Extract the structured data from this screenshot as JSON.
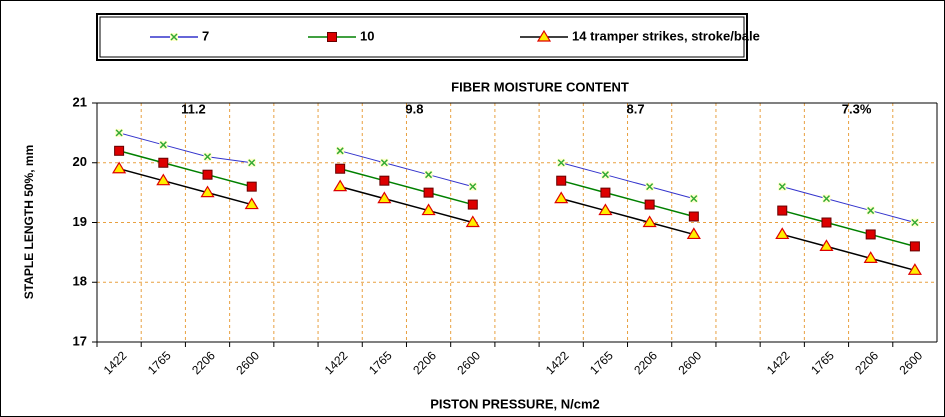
{
  "chart_data": {
    "type": "line",
    "title": "FIBER MOISTURE CONTENT",
    "annotations": [
      "11.2",
      "9.8",
      "8.7",
      "7.3%"
    ],
    "x_label": "PISTON PRESSURE, N/cm2",
    "y_label": "STAPLE LENGTH 50%, mm",
    "categories": [
      "1422",
      "1765",
      "2206",
      "2600",
      null,
      "1422",
      "1765",
      "2206",
      "2600",
      null,
      "1422",
      "1765",
      "2206",
      "2600",
      null,
      "1422",
      "1765",
      "2206",
      "2600"
    ],
    "series": [
      {
        "name": "7",
        "color": "#3333cc",
        "marker": "x",
        "marker_color": "#33aa33",
        "values": [
          20.5,
          20.3,
          20.1,
          20.0,
          null,
          20.2,
          20.0,
          19.8,
          19.6,
          null,
          20.0,
          19.8,
          19.6,
          19.4,
          null,
          19.6,
          19.4,
          19.2,
          19.0
        ]
      },
      {
        "name": "10",
        "color": "#008000",
        "marker": "square",
        "marker_color": "#dd0000",
        "values": [
          20.2,
          20.0,
          19.8,
          19.6,
          null,
          19.9,
          19.7,
          19.5,
          19.3,
          null,
          19.7,
          19.5,
          19.3,
          19.1,
          null,
          19.2,
          19.0,
          18.8,
          18.6
        ]
      },
      {
        "name": "14 tramper strikes, stroke/bale",
        "color": "#000000",
        "marker": "triangle",
        "marker_color": "#ffee00",
        "values": [
          19.9,
          19.7,
          19.5,
          19.3,
          null,
          19.6,
          19.4,
          19.2,
          19.0,
          null,
          19.4,
          19.2,
          19.0,
          18.8,
          null,
          18.8,
          18.6,
          18.4,
          18.2
        ]
      }
    ],
    "ylim": [
      17,
      21
    ],
    "yticks": [
      17,
      18,
      19,
      20,
      21
    ],
    "grid": true,
    "grid_color": "#e8a040"
  }
}
